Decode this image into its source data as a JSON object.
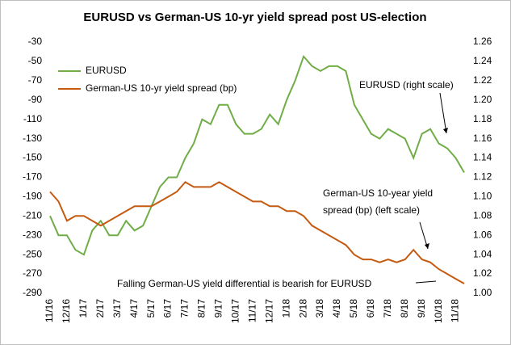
{
  "chart_data": {
    "type": "line",
    "title": "EURUSD vs German-US 10-yr yield spread post US-election",
    "categories": [
      "11/16",
      null,
      "12/16",
      null,
      "1/17",
      null,
      "2/17",
      null,
      "3/17",
      null,
      "4/17",
      null,
      "5/17",
      null,
      "6/17",
      null,
      "7/17",
      null,
      "8/17",
      null,
      "9/17",
      null,
      "10/17",
      null,
      "11/17",
      null,
      "12/17",
      null,
      "1/18",
      null,
      "2/18",
      null,
      "3/18",
      null,
      "4/18",
      null,
      "5/18",
      null,
      "6/18",
      null,
      "7/18",
      null,
      "8/18",
      null,
      "9/18",
      null,
      "10/18",
      null,
      "11/18",
      null
    ],
    "series": [
      {
        "name": "EURUSD",
        "color": "#70ad47",
        "axis": "y2",
        "values": [
          1.08,
          1.06,
          1.06,
          1.045,
          1.04,
          1.065,
          1.075,
          1.06,
          1.06,
          1.075,
          1.065,
          1.07,
          1.09,
          1.11,
          1.12,
          1.12,
          1.14,
          1.155,
          1.18,
          1.175,
          1.195,
          1.195,
          1.175,
          1.165,
          1.165,
          1.17,
          1.185,
          1.175,
          1.2,
          1.22,
          1.245,
          1.235,
          1.23,
          1.235,
          1.235,
          1.23,
          1.195,
          1.18,
          1.165,
          1.16,
          1.17,
          1.165,
          1.16,
          1.14,
          1.165,
          1.17,
          1.155,
          1.15,
          1.14,
          1.125
        ]
      },
      {
        "name": "German-US 10-yr yield spread (bp)",
        "color": "#c55a11",
        "values": [
          -185,
          -195,
          -215,
          -210,
          -210,
          -215,
          -220,
          -215,
          -210,
          -205,
          -200,
          -200,
          -200,
          -195,
          -190,
          -185,
          -175,
          -180,
          -180,
          -180,
          -175,
          -180,
          -185,
          -190,
          -195,
          -195,
          -200,
          -200,
          -205,
          -205,
          -210,
          -220,
          -225,
          -230,
          -235,
          -240,
          -250,
          -255,
          -255,
          -258,
          -255,
          -258,
          -255,
          -245,
          -255,
          -258,
          -265,
          -270,
          -275,
          -280
        ]
      }
    ],
    "ylim": [
      -290,
      -30
    ],
    "yticks": [
      -290,
      -270,
      -250,
      -230,
      -210,
      -190,
      -170,
      -150,
      -130,
      -110,
      -90,
      -70,
      -50,
      -30
    ],
    "y2lim": [
      1.0,
      1.26
    ],
    "y2ticks": [
      {
        "value": 1.0,
        "label": "1.00"
      },
      1.02,
      1.04,
      1.06,
      1.08,
      {
        "value": 1.1,
        "label": "1.10"
      },
      1.12,
      1.14,
      1.16,
      1.18,
      {
        "value": 1.2,
        "label": "1.20"
      },
      1.22,
      1.24,
      1.26
    ],
    "grid": false,
    "legend": "upper left",
    "annotations": [
      "EURUSD (right scale)",
      "German-US 10-year yield",
      "spread (bp) (left scale)",
      "Falling German-US yield differential is bearish for EURUSD"
    ]
  }
}
